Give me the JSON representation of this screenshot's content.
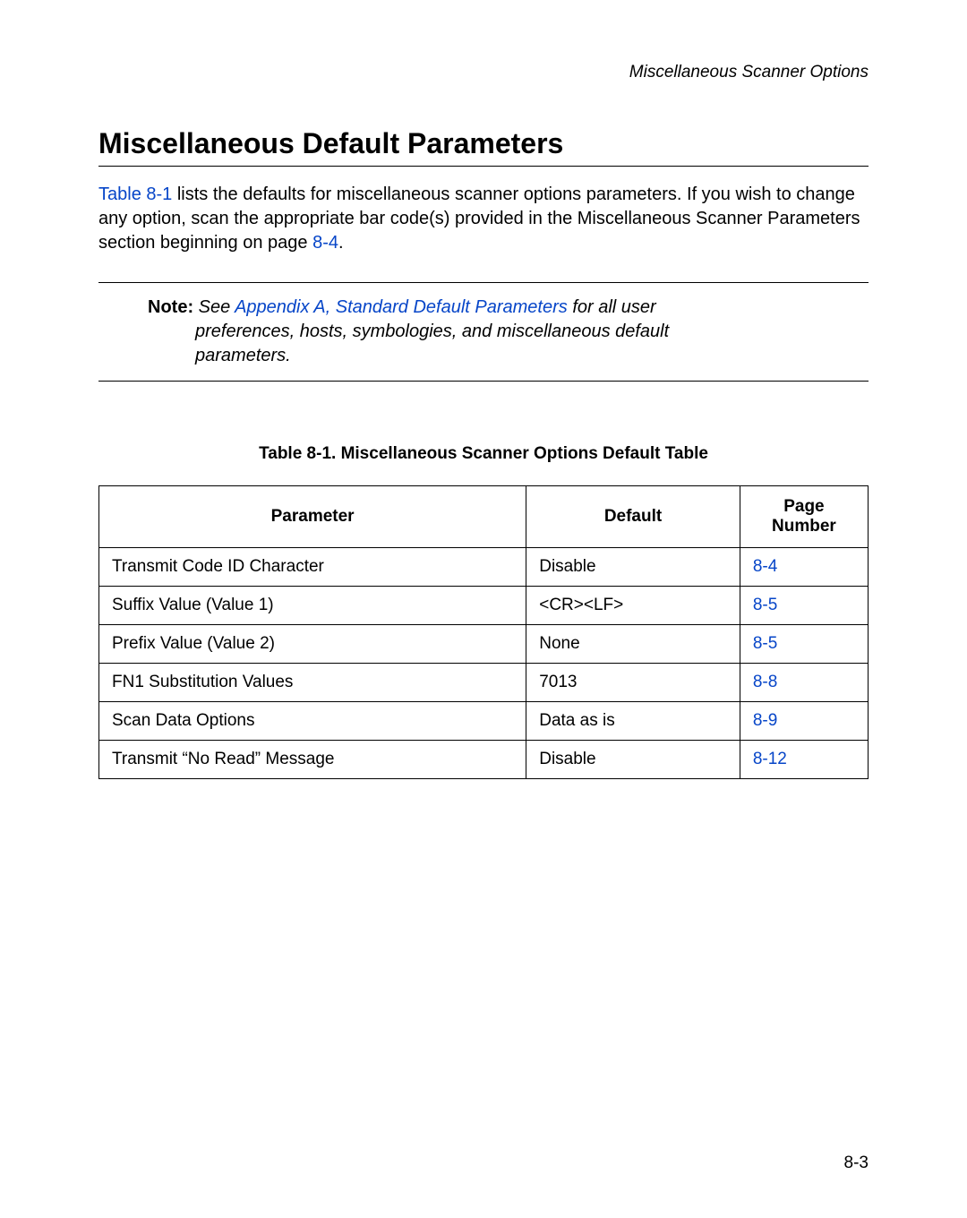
{
  "running_head": "Miscellaneous Scanner Options",
  "section_title": "Miscellaneous Default Parameters",
  "intro": {
    "link1": "Table 8-1",
    "text1": " lists the defaults for miscellaneous scanner options parameters. If you wish to change any option, scan the appropriate bar code(s) provided in the Miscellaneous Scanner Parameters section beginning on page ",
    "link2": "8-4",
    "text2": "."
  },
  "note": {
    "label": "Note:",
    "pre": "See ",
    "link": "Appendix A, Standard Default Parameters",
    "post1": " for all user",
    "post2": "preferences, hosts, symbologies, and miscellaneous default",
    "post3": "parameters."
  },
  "table": {
    "caption": "Table 8-1.  Miscellaneous Scanner Options Default Table",
    "headers": {
      "c1": "Parameter",
      "c2": "Default",
      "c3": "Page Number"
    },
    "rows": [
      {
        "param": "Transmit Code ID Character",
        "def": "Disable",
        "page": "8-4"
      },
      {
        "param": "Suffix Value (Value 1)",
        "def": "<CR><LF>",
        "page": "8-5"
      },
      {
        "param": "Prefix Value (Value 2)",
        "def": "None",
        "page": "8-5"
      },
      {
        "param": "FN1 Substitution Values",
        "def": "7013",
        "page": "8-8"
      },
      {
        "param": "Scan Data Options",
        "def": "Data as is",
        "page": "8-9"
      },
      {
        "param": "Transmit “No Read” Message",
        "def": "Disable",
        "page": "8-12"
      }
    ]
  },
  "page_number": "8-3",
  "colors": {
    "link": "#0645c8",
    "text": "#000000",
    "bg": "#ffffff",
    "border": "#000000"
  }
}
